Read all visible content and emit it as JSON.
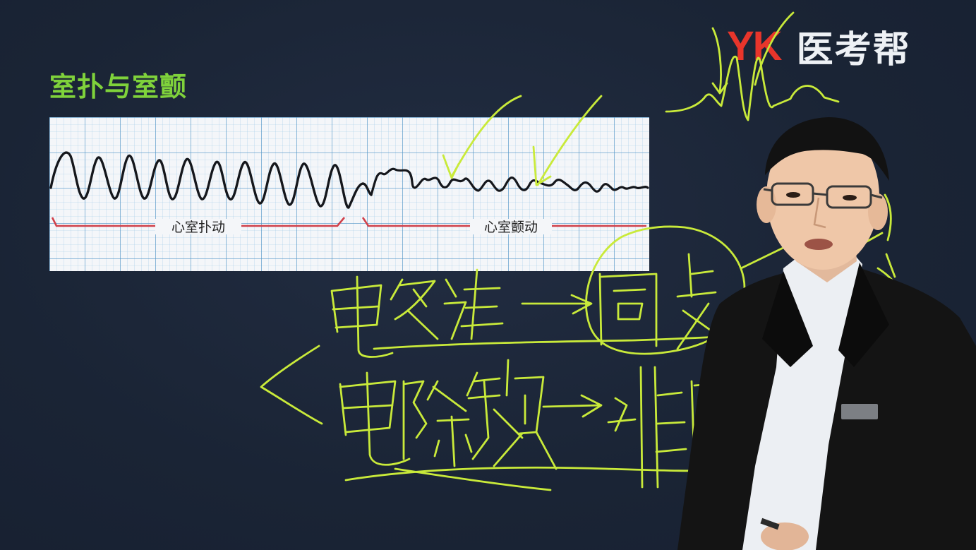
{
  "slide": {
    "title": "室扑与室颤",
    "logo": {
      "brand_latin": "YK",
      "brand_cn": "医考帮"
    },
    "ecg": {
      "label_flutter": "心室扑动",
      "label_fibrillation": "心室颤动"
    }
  },
  "colors": {
    "background": "#1b2537",
    "title": "#7fd23b",
    "logo_red": "#e8352b",
    "annotation_ink": "#c9ea3a",
    "ecg_trace": "#15171c",
    "ecg_bracket": "#d0404a",
    "grid_line": "#6fb1d8"
  }
}
